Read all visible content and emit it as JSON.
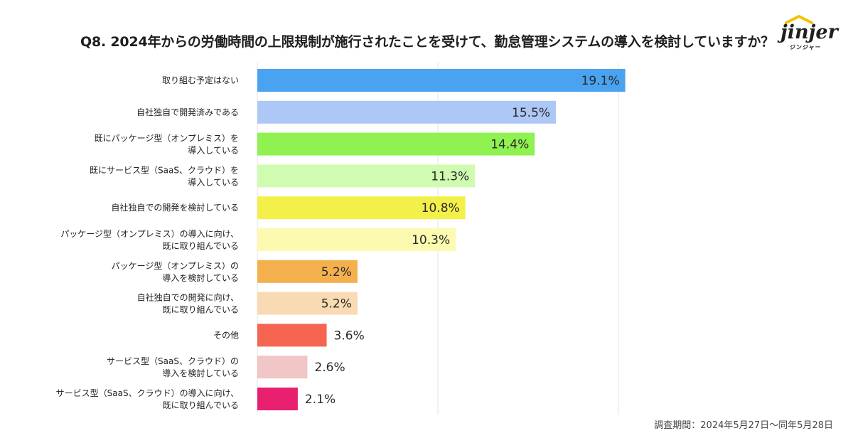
{
  "title": "Q8. 2024年からの労働時間の上限規制が施行されたことを受けて、勤怠管理システムの導入を検討していますか？",
  "brand": {
    "name": "jinjer",
    "kana": "ジンジャー"
  },
  "footnote": "調査期間：2024年5月27日〜同年5月28日",
  "chart_data": {
    "type": "bar",
    "orientation": "horizontal",
    "title": "Q8. 2024年からの労働時間の上限規制が施行されたことを受けて、勤怠管理システムの導入を検討していますか？",
    "xlabel": "",
    "ylabel": "",
    "xlim": [
      0,
      25
    ],
    "grid": true,
    "categories": [
      [
        "取り組む予定はない"
      ],
      [
        "自社独自で開発済みである"
      ],
      [
        "既にパッケージ型（オンプレミス）を",
        "導入している"
      ],
      [
        "既にサービス型（SaaS、クラウド）を",
        "導入している"
      ],
      [
        "自社独自での開発を検討している"
      ],
      [
        "パッケージ型（オンプレミス）の導入に向け、",
        "既に取り組んでいる"
      ],
      [
        "パッケージ型（オンプレミス）の",
        "導入を検討している"
      ],
      [
        "自社独自での開発に向け、",
        "既に取り組んでいる"
      ],
      [
        "その他"
      ],
      [
        "サービス型（SaaS、クラウド）の",
        "導入を検討している"
      ],
      [
        "サービス型（SaaS、クラウド）の導入に向け、",
        "既に取り組んでいる"
      ]
    ],
    "values": [
      19.1,
      15.5,
      14.4,
      11.3,
      10.8,
      10.3,
      5.2,
      5.2,
      3.6,
      2.6,
      2.1
    ],
    "value_labels": [
      "19.1%",
      "15.5%",
      "14.4%",
      "11.3%",
      "10.8%",
      "10.3%",
      "5.2%",
      "5.2%",
      "3.6%",
      "2.6%",
      "2.1%"
    ],
    "colors": [
      "#4aa3f0",
      "#adc8f7",
      "#8ff250",
      "#cffcb0",
      "#f3f04a",
      "#fbfab0",
      "#f5b04e",
      "#f9dab2",
      "#f56552",
      "#f0c6c6",
      "#e8206f"
    ]
  }
}
